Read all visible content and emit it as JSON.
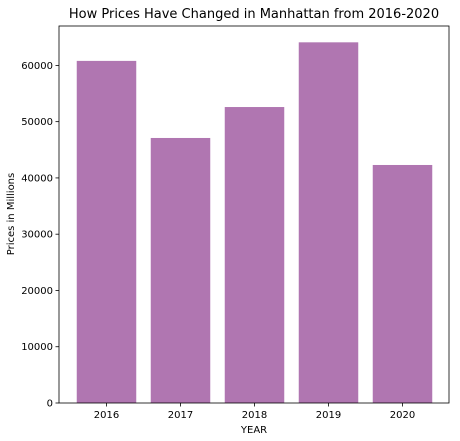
{
  "chart_data": {
    "type": "bar",
    "title": "How Prices Have Changed in Manhattan from 2016-2020",
    "xlabel": "YEAR",
    "ylabel": "Prices in Millions",
    "categories": [
      "2016",
      "2017",
      "2018",
      "2019",
      "2020"
    ],
    "values": [
      60800,
      47100,
      52600,
      64100,
      42300
    ],
    "ylim": [
      0,
      67000
    ],
    "yticks": [
      0,
      10000,
      20000,
      30000,
      40000,
      50000,
      60000
    ],
    "bar_color": "#b076b1",
    "grid": false,
    "legend": "none"
  }
}
